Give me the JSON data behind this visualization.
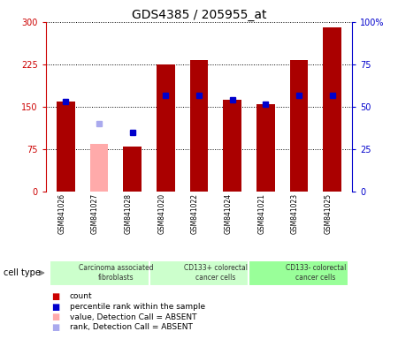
{
  "title": "GDS4385 / 205955_at",
  "samples": [
    "GSM841026",
    "GSM841027",
    "GSM841028",
    "GSM841020",
    "GSM841022",
    "GSM841024",
    "GSM841021",
    "GSM841023",
    "GSM841025"
  ],
  "bar_values": [
    160,
    85,
    80,
    225,
    232,
    163,
    155,
    233,
    290
  ],
  "bar_colors": [
    "#aa0000",
    "#ffaaaa",
    "#aa0000",
    "#aa0000",
    "#aa0000",
    "#aa0000",
    "#aa0000",
    "#aa0000",
    "#aa0000"
  ],
  "rank_values": [
    160,
    120,
    105,
    170,
    170,
    163,
    155,
    170,
    170
  ],
  "rank_colors": [
    "#0000cc",
    "#aaaaee",
    "#0000cc",
    "#0000cc",
    "#0000cc",
    "#0000cc",
    "#0000cc",
    "#0000cc",
    "#0000cc"
  ],
  "absent": [
    false,
    true,
    true,
    false,
    false,
    false,
    false,
    false,
    false
  ],
  "ylim_left": [
    0,
    300
  ],
  "ylim_right": [
    0,
    100
  ],
  "yticks_left": [
    0,
    75,
    150,
    225,
    300
  ],
  "yticks_right": [
    0,
    25,
    50,
    75,
    100
  ],
  "ytick_labels_right": [
    "0",
    "25",
    "50",
    "75",
    "100%"
  ],
  "groups": [
    {
      "label": "Carcinoma associated\nfibroblasts",
      "start": 0,
      "end": 3
    },
    {
      "label": "CD133+ colorectal\ncancer cells",
      "start": 3,
      "end": 6
    },
    {
      "label": "CD133- colorectal\ncancer cells",
      "start": 6,
      "end": 9
    }
  ],
  "group_colors": [
    "#ccffcc",
    "#ccffcc",
    "#99ff99"
  ],
  "cell_type_label": "cell type",
  "legend_items": [
    {
      "color": "#cc0000",
      "label": "count"
    },
    {
      "color": "#0000cc",
      "label": "percentile rank within the sample"
    },
    {
      "color": "#ffaaaa",
      "label": "value, Detection Call = ABSENT"
    },
    {
      "color": "#aaaaee",
      "label": "rank, Detection Call = ABSENT"
    }
  ],
  "bar_width": 0.55,
  "background_color": "#ffffff",
  "plot_bg_color": "#ffffff",
  "left_label_color": "#cc0000",
  "right_label_color": "#0000cc",
  "xlabel_bg_color": "#cccccc"
}
